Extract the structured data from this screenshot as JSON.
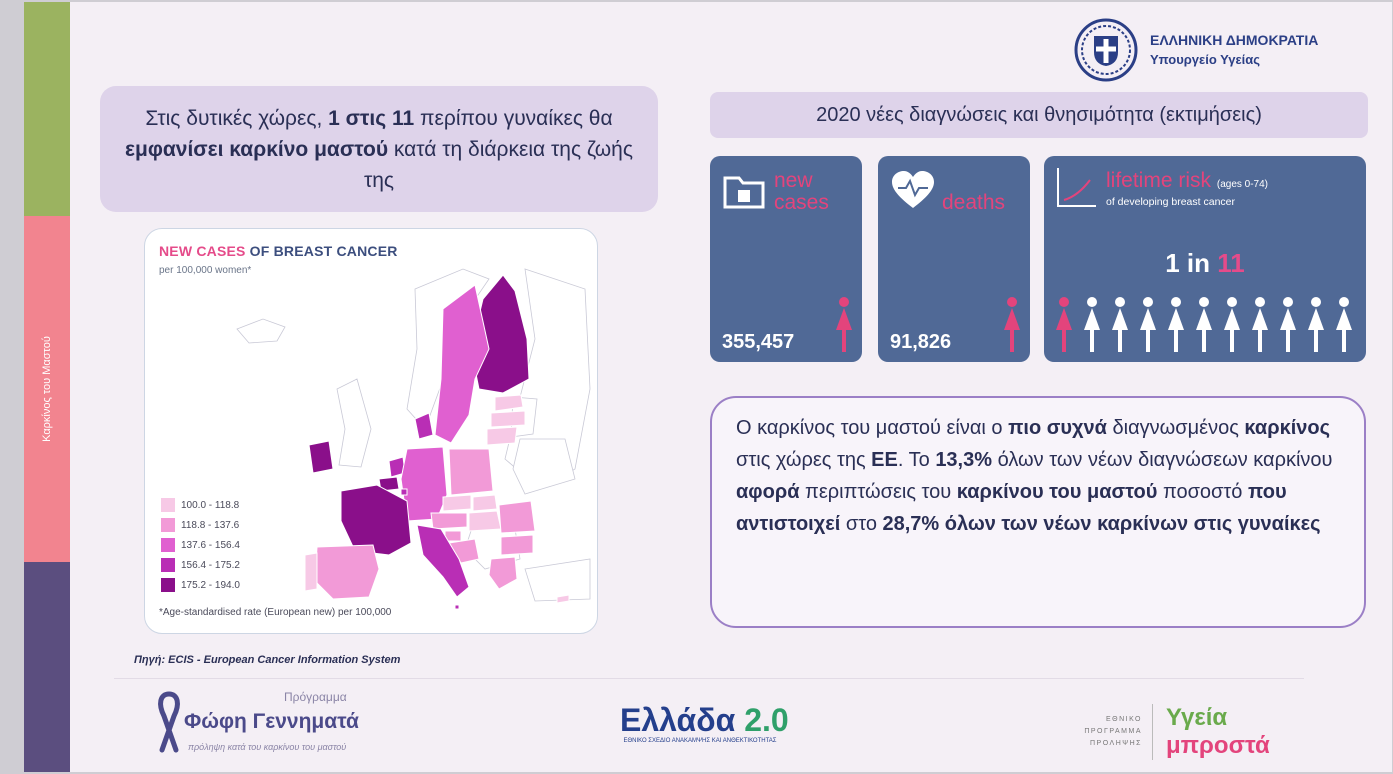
{
  "side_label": "Καρκίνος του Μαστού",
  "gov": {
    "line1": "ΕΛΛΗΝΙΚΗ ΔΗΜΟΚΡΑΤΙΑ",
    "line2": "Υπουργείο Υγείας"
  },
  "intro": {
    "t1": "Στις δυτικές χώρες, ",
    "b1": "1 στις 11",
    "t2": " περίπου γυναίκες θα ",
    "b2": "εμφανίσει καρκίνο μαστού",
    "t3": " κατά τη διάρκεια της ζωής της"
  },
  "stats_title": "2020 νέες διαγνώσεις και θνησιμότητα (εκτιμήσεις)",
  "new_cases": {
    "label_1": "new",
    "label_2": "cases",
    "value": "355,457"
  },
  "deaths": {
    "label": "deaths",
    "value": "91,826"
  },
  "risk": {
    "label": "lifetime risk",
    "ages": "(ages 0-74)",
    "sub": "of developing breast cancer",
    "one": "1 in",
    "eleven": "11"
  },
  "map": {
    "title_pink": "NEW CASES",
    "title_rest": " OF BREAST CANCER",
    "subtitle": "per 100,000 women*",
    "footnote": "*Age-standardised rate (European new) per 100,000",
    "legend": [
      {
        "label": "100.0 - 118.8",
        "color": "#f7c9e6"
      },
      {
        "label": "118.8 - 137.6",
        "color": "#f29ad7"
      },
      {
        "label": "137.6 - 156.4",
        "color": "#e060d0"
      },
      {
        "label": "156.4 - 175.2",
        "color": "#b92eb5"
      },
      {
        "label": "175.2 - 194.0",
        "color": "#8a0f8a"
      }
    ]
  },
  "source": "Πηγή: ECIS - European Cancer Information System",
  "fact": {
    "t1": "Ο καρκίνος του μαστού είναι ο ",
    "b1": "πιο συχνά",
    "t2": " διαγνωσμένος ",
    "b2": "καρκίνος",
    "t3": " στις χώρες της ",
    "b3": "ΕΕ",
    "t4": ". Το ",
    "b4": "13,3%",
    "t5": " όλων των νέων διαγνώσεων καρκίνου ",
    "b5": "αφορά",
    "t6": " περιπτώσεις του ",
    "b6": "καρκίνου του μαστού",
    "t7": " ποσοστό ",
    "b7": "που αντιστοιχεί",
    "t8": " στο ",
    "b8": "28,7% όλων των νέων καρκίνων στις γυναίκες"
  },
  "logos": {
    "program": "Πρόγραμμα",
    "name": "Φώφη Γεννηματά",
    "tagline": "πρόληψη κατά του καρκίνου του μαστού",
    "ellada": "Ελλάδα",
    "ellada_ver": "2.0",
    "ellada_sub": "ΕΘΝΙΚΟ ΣΧΕΔΙΟ ΑΝΑΚΑΜΨΗΣ ΚΑΙ ΑΝΘΕΚΤΙΚΟΤΗΤΑΣ",
    "prog_l1": "ΕΘΝΙΚΟ",
    "prog_l2": "ΠΡΟΓΡΑΜΜΑ",
    "prog_l3": "ΠΡΟΛΗΨΗΣ",
    "ygeia_1": "Υγεία",
    "ygeia_2": "μπροστά"
  }
}
